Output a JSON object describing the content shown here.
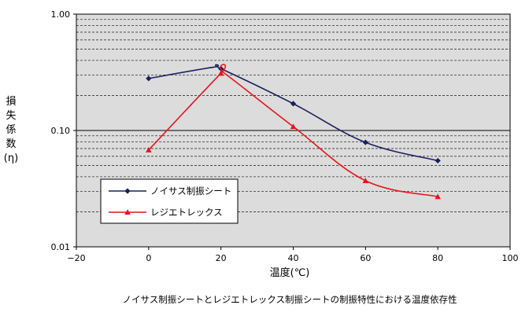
{
  "chart_data": {
    "type": "line",
    "title": "",
    "caption": "ノイサス制振シートとレジエトレックス制振シートの制振特性における温度依存性",
    "xlabel": "温度(℃)",
    "ylabel": "損失係数(η)",
    "ylabel_chars": [
      "損",
      "失",
      "係",
      "数",
      "(η)"
    ],
    "x_range": [
      -20,
      100
    ],
    "x_ticks": [
      -20,
      0,
      20,
      40,
      60,
      80,
      100
    ],
    "x_tick_labels": [
      "−20",
      "0",
      "20",
      "40",
      "60",
      "80",
      "100"
    ],
    "y_scale": "log",
    "y_range": [
      0.01,
      1.0
    ],
    "y_major_ticks": [
      0.01,
      0.1,
      1.0
    ],
    "y_tick_labels": [
      "0.01",
      "0.10",
      "1.00"
    ],
    "grid": true,
    "legend_position": "lower-left",
    "series": [
      {
        "name": "ノイサス制振シート",
        "color": "#1a1f5e",
        "marker": "diamond",
        "x": [
          0,
          20,
          40,
          60,
          80
        ],
        "y": [
          0.28,
          0.34,
          0.17,
          0.079,
          0.055
        ],
        "curve_peak": {
          "x": 18,
          "y": 0.35
        }
      },
      {
        "name": "レジエトレックス",
        "color": "#e8141a",
        "marker": "triangle",
        "x": [
          0,
          20,
          40,
          60,
          80
        ],
        "y": [
          0.068,
          0.31,
          0.108,
          0.037,
          0.027
        ],
        "curve_peak": {
          "x": 21,
          "y": 0.31
        }
      }
    ]
  }
}
